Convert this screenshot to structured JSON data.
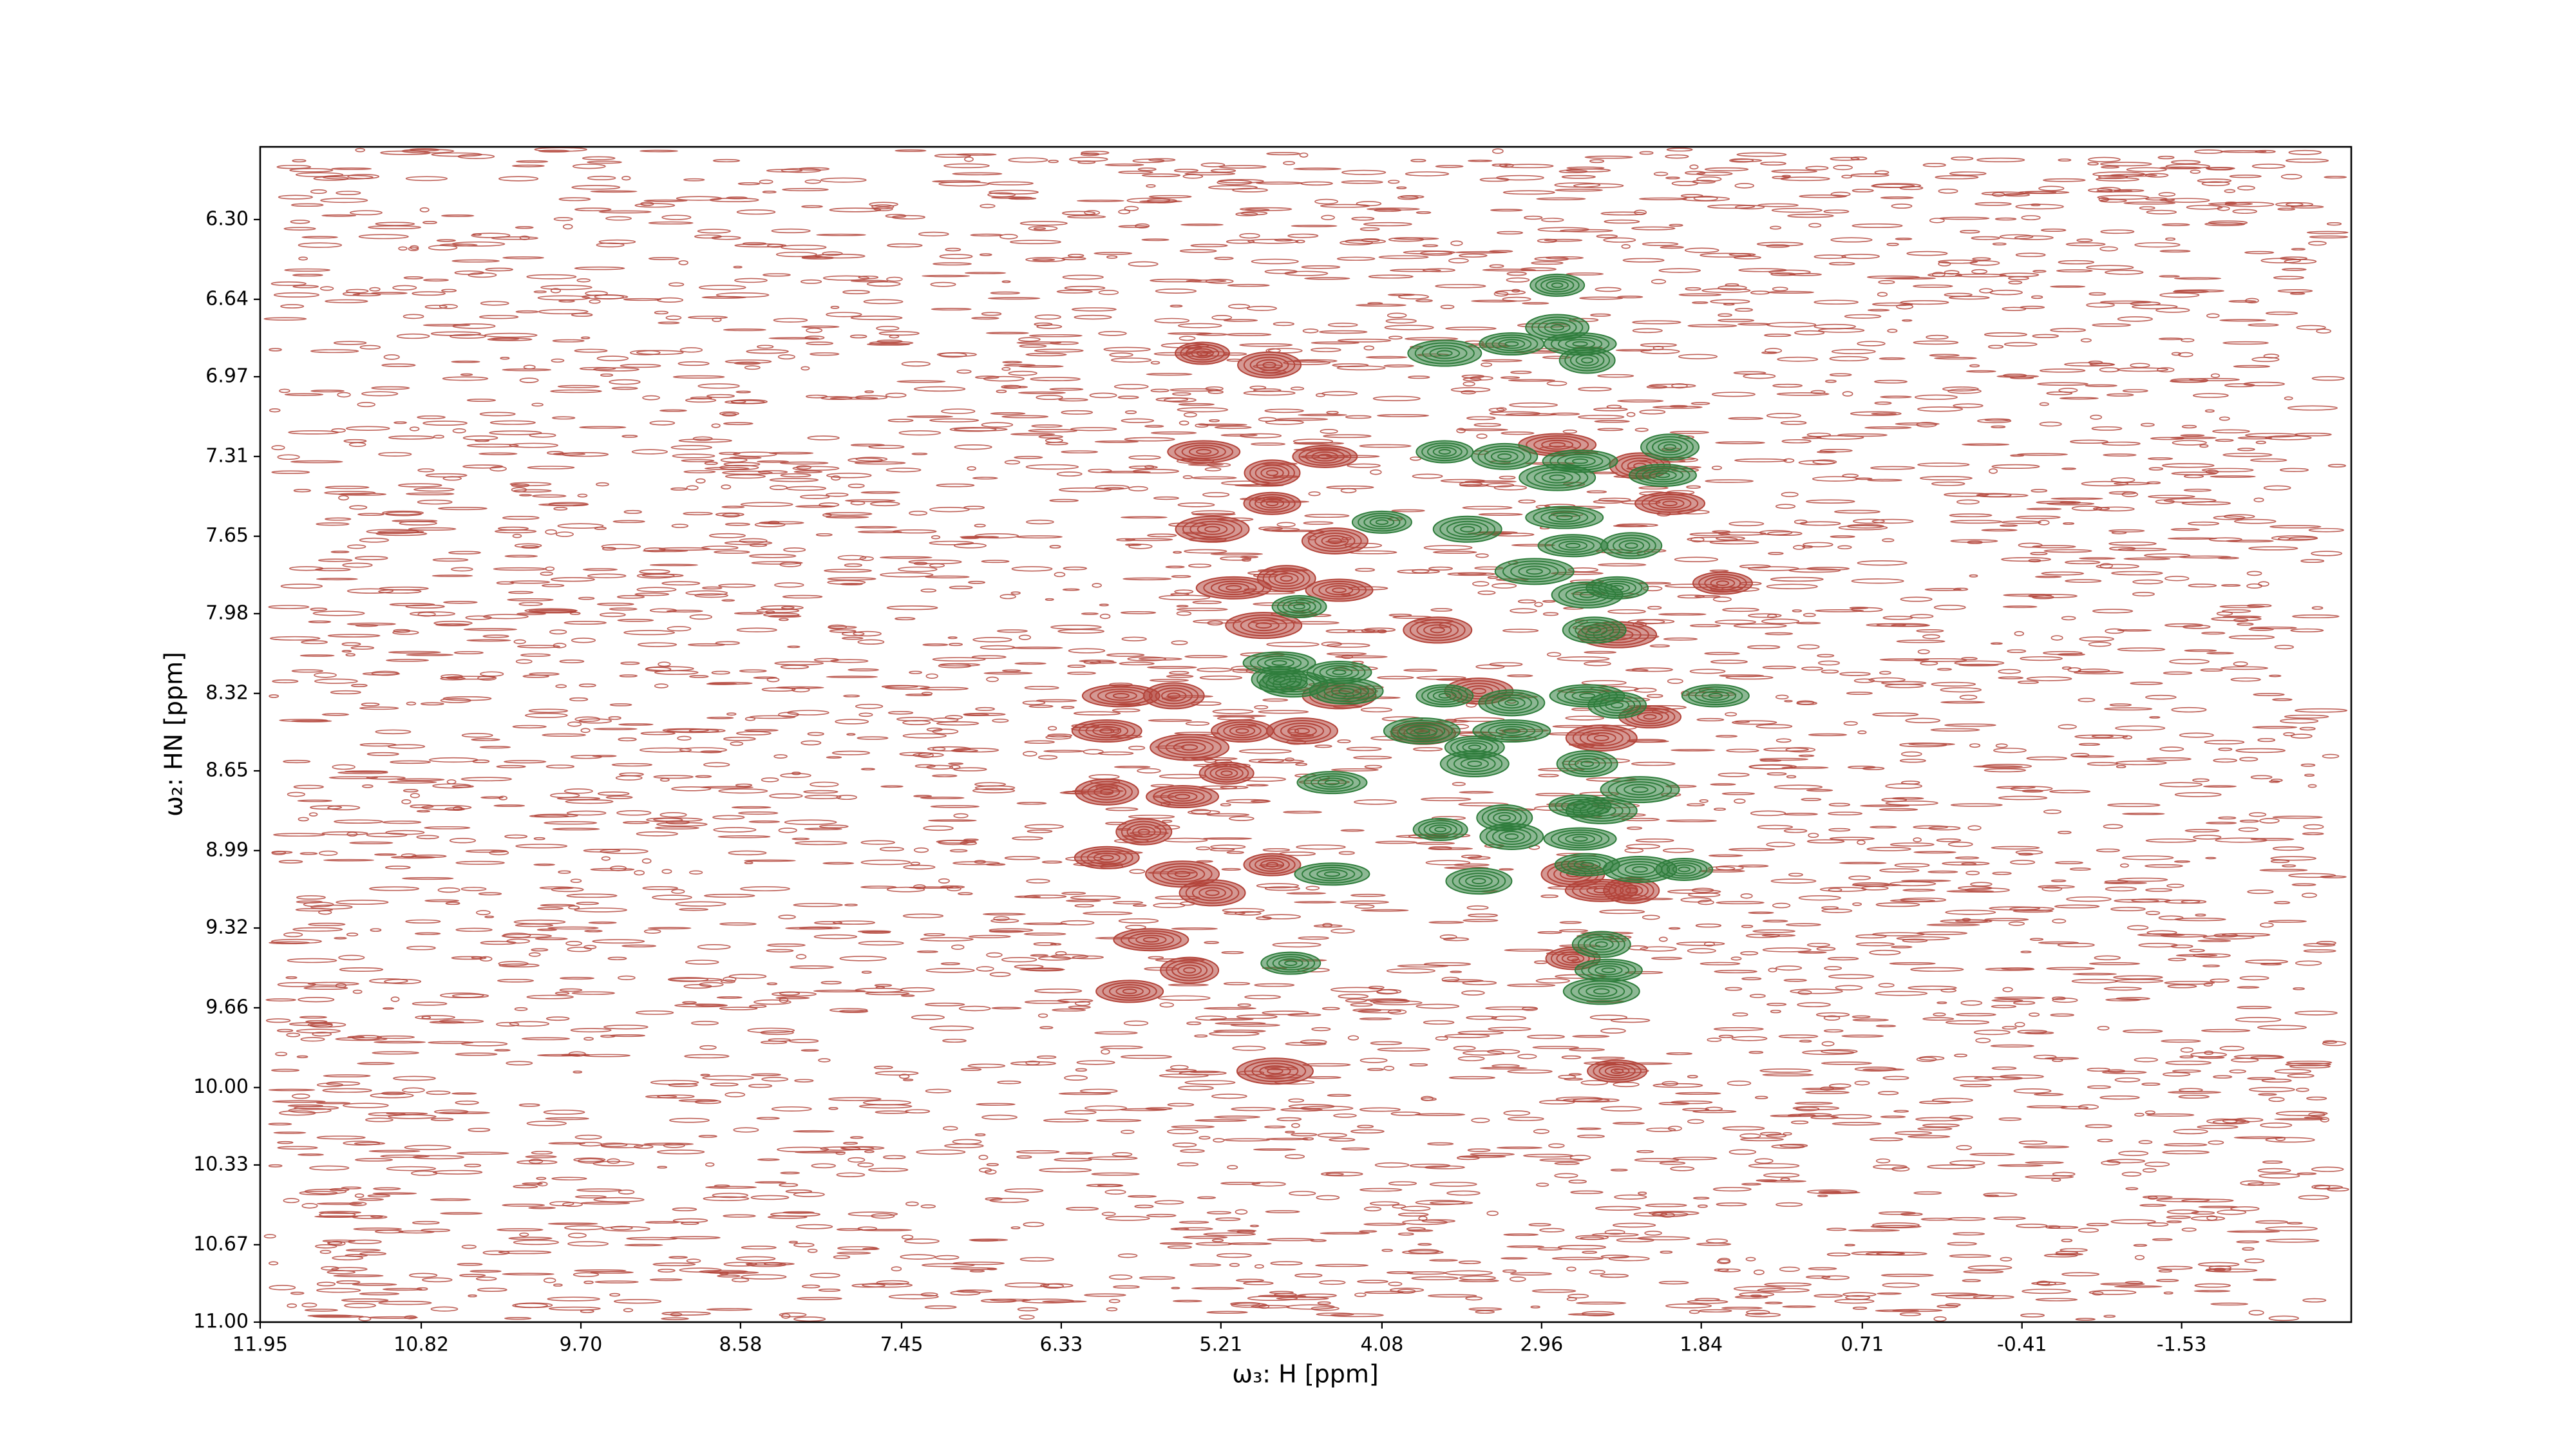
{
  "chart_data": {
    "type": "scatter",
    "x_label": "ω₃: H [ppm]",
    "y_label": "ω₂: HN [ppm]",
    "xlim": [
      11.95,
      -2.72
    ],
    "ylim": [
      11.0,
      5.99
    ],
    "xticks": [
      11.95,
      10.82,
      {
        "value": 9.7,
        "label": "9.70"
      },
      8.58,
      7.45,
      6.33,
      5.21,
      4.08,
      2.96,
      1.84,
      0.71,
      -0.41,
      -1.53
    ],
    "yticks": [
      {
        "value": 6.3,
        "label": "6.30"
      },
      6.64,
      6.97,
      7.31,
      7.65,
      7.98,
      8.32,
      8.65,
      8.99,
      9.32,
      9.66,
      {
        "value": 10,
        "label": "10.00"
      },
      10.33,
      10.67,
      {
        "value": 11,
        "label": "11.00"
      }
    ],
    "series": [
      {
        "color": "#b3443a",
        "x": [
          5.34,
          4.87,
          5.33,
          4.85,
          4.48,
          5.27,
          4.85,
          4.41,
          5.12,
          4.75,
          4.38,
          4.91,
          1.69,
          3.69,
          5.91,
          5.54,
          6.01,
          5.43,
          5.06,
          4.64,
          5.17,
          6.01,
          5.48,
          5.75,
          6.01,
          5.48,
          4.85,
          5.27,
          5.7,
          5.43,
          5.85,
          4.83,
          2.43,
          3.4,
          2.85,
          2.27,
          2.06,
          2.43,
          2.2,
          2.54,
          2.74,
          2.74,
          2.54,
          2.33,
          3.79,
          4.38
        ],
        "values": [
          6.87,
          6.92,
          7.29,
          7.38,
          7.31,
          7.62,
          7.51,
          7.67,
          7.87,
          7.83,
          7.88,
          8.03,
          7.85,
          8.05,
          8.33,
          8.33,
          8.48,
          8.55,
          8.48,
          8.48,
          8.66,
          8.74,
          8.76,
          8.91,
          9.02,
          9.09,
          9.05,
          9.17,
          9.37,
          9.5,
          9.59,
          9.93,
          9.93,
          8.31,
          7.26,
          7.35,
          7.51,
          8.07,
          8.42,
          8.51,
          9.45,
          9.09,
          9.16,
          9.16,
          8.49,
          8.33
        ]
      },
      {
        "color": "#2f7d3c",
        "x": [
          2.85,
          2.85,
          2.69,
          2.64,
          3.17,
          3.64,
          3.64,
          3.22,
          2.69,
          2.06,
          2.11,
          2.85,
          4.08,
          3.48,
          2.8,
          2.33,
          2.74,
          3.01,
          2.43,
          2.64,
          4.66,
          2.59,
          4.8,
          4.8,
          4.38,
          4.33,
          3.64,
          3.17,
          2.64,
          2.43,
          1.74,
          3.8,
          3.43,
          3.43,
          3.17,
          2.64,
          4.43,
          2.27,
          2.69,
          2.54,
          3.67,
          3.17,
          2.69,
          3.22,
          2.64,
          2.27,
          1.96,
          3.4,
          4.43,
          2.54,
          2.49,
          2.54,
          4.72,
          4.7
        ],
        "values": [
          6.58,
          6.76,
          6.83,
          6.9,
          6.83,
          6.87,
          7.29,
          7.31,
          7.33,
          7.27,
          7.39,
          7.4,
          7.59,
          7.62,
          7.57,
          7.69,
          7.69,
          7.8,
          7.87,
          7.9,
          7.95,
          8.05,
          8.19,
          8.26,
          8.23,
          8.31,
          8.33,
          8.36,
          8.33,
          8.37,
          8.33,
          8.48,
          8.55,
          8.62,
          8.48,
          8.62,
          8.7,
          8.73,
          8.8,
          8.82,
          8.9,
          8.93,
          8.94,
          8.85,
          9.05,
          9.07,
          9.07,
          9.12,
          9.09,
          9.39,
          9.5,
          9.59,
          9.47,
          8.28
        ]
      }
    ]
  }
}
